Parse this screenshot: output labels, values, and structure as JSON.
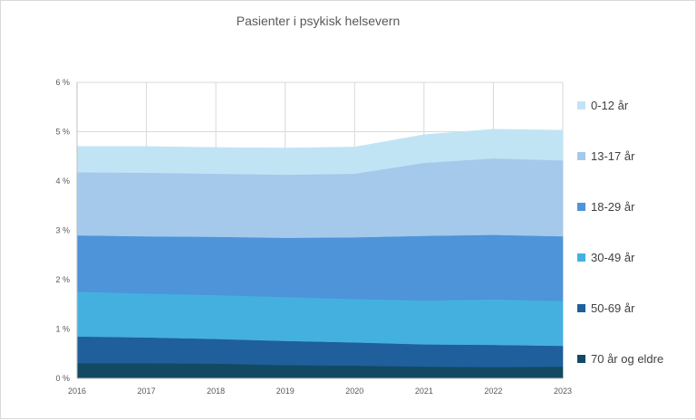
{
  "chart_data": {
    "type": "area",
    "stacked": true,
    "title": "Pasienter i psykisk helsevern",
    "xlabel": "",
    "ylabel": "",
    "x": [
      "2016",
      "2017",
      "2018",
      "2019",
      "2020",
      "2021",
      "2022",
      "2023"
    ],
    "ylim": [
      0,
      6
    ],
    "y_ticks": [
      "0 %",
      "1 %",
      "2 %",
      "3 %",
      "4 %",
      "5 %",
      "6 %"
    ],
    "grid": true,
    "legend_position": "right",
    "series": [
      {
        "name": "70 år og eldre",
        "color": "#124a63",
        "values": [
          0.31,
          0.31,
          0.3,
          0.27,
          0.26,
          0.24,
          0.23,
          0.24
        ]
      },
      {
        "name": "50-69 år",
        "color": "#1f5f9c",
        "values": [
          0.54,
          0.52,
          0.5,
          0.49,
          0.47,
          0.45,
          0.45,
          0.42
        ]
      },
      {
        "name": "30-49 år",
        "color": "#44b0e0",
        "values": [
          0.91,
          0.89,
          0.89,
          0.89,
          0.88,
          0.89,
          0.92,
          0.91
        ]
      },
      {
        "name": "18-29 år",
        "color": "#4d94d9",
        "values": [
          1.14,
          1.16,
          1.18,
          1.2,
          1.25,
          1.31,
          1.31,
          1.31
        ]
      },
      {
        "name": "13-17 år",
        "color": "#a5c9eb",
        "values": [
          1.28,
          1.29,
          1.28,
          1.28,
          1.29,
          1.48,
          1.55,
          1.54
        ]
      },
      {
        "name": "0-12 år",
        "color": "#c1e4f5",
        "values": [
          0.52,
          0.53,
          0.53,
          0.54,
          0.54,
          0.57,
          0.59,
          0.61
        ]
      }
    ]
  },
  "legend": {
    "items": [
      {
        "label": "0-12 år",
        "color": "#c1e4f5"
      },
      {
        "label": "13-17 år",
        "color": "#a5c9eb"
      },
      {
        "label": "18-29 år",
        "color": "#4d94d9"
      },
      {
        "label": "30-49 år",
        "color": "#44b0e0"
      },
      {
        "label": "50-69 år",
        "color": "#1f5f9c"
      },
      {
        "label": "70 år og eldre",
        "color": "#124a63"
      }
    ]
  }
}
